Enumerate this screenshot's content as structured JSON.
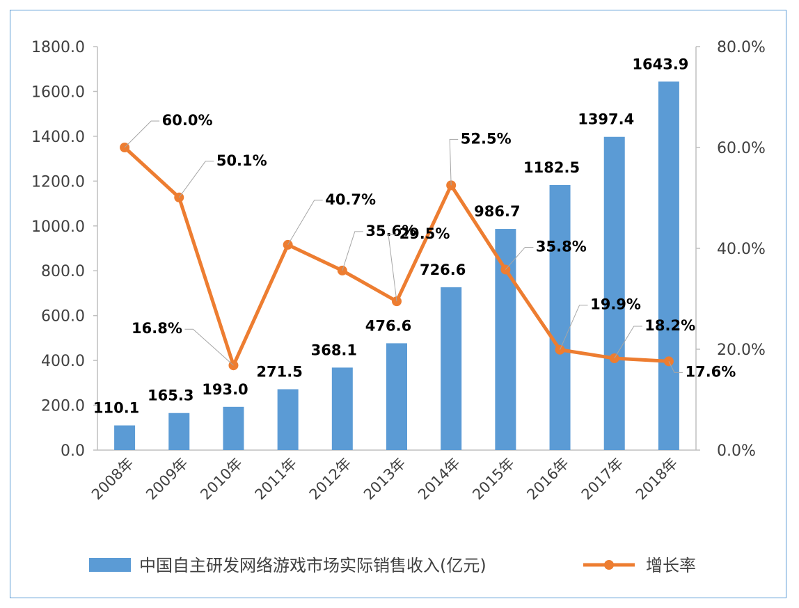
{
  "chart_data": {
    "type": "bar+line",
    "categories": [
      "2008年",
      "2009年",
      "2010年",
      "2011年",
      "2012年",
      "2013年",
      "2014年",
      "2015年",
      "2016年",
      "2017年",
      "2018年"
    ],
    "series": [
      {
        "name": "中国自主研发网络游戏市场实际销售收入(亿元)",
        "type": "bar",
        "axis": "left",
        "color": "#5b9bd5",
        "values": [
          110.1,
          165.3,
          193.0,
          271.5,
          368.1,
          476.6,
          726.6,
          986.7,
          1182.5,
          1397.4,
          1643.9
        ],
        "labels": [
          "110.1",
          "165.3",
          "193.0",
          "271.5",
          "368.1",
          "476.6",
          "726.6",
          "986.7",
          "1182.5",
          "1397.4",
          "1643.9"
        ]
      },
      {
        "name": "增长率",
        "type": "line",
        "axis": "right",
        "color": "#ed7d31",
        "values": [
          60.0,
          50.1,
          16.8,
          40.7,
          35.6,
          29.5,
          52.5,
          35.8,
          19.9,
          18.2,
          17.6
        ],
        "labels": [
          "60.0%",
          "50.1%",
          "16.8%",
          "40.7%",
          "35.6%",
          "29.5%",
          "52.5%",
          "35.8%",
          "19.9%",
          "18.2%",
          "17.6%"
        ]
      }
    ],
    "y_left": {
      "min": 0,
      "max": 1800,
      "step": 200,
      "tick_labels": [
        "0.0",
        "200.0",
        "400.0",
        "600.0",
        "800.0",
        "1000.0",
        "1200.0",
        "1400.0",
        "1600.0",
        "1800.0"
      ]
    },
    "y_right": {
      "min": 0,
      "max": 80,
      "step": 20,
      "tick_labels": [
        "0.0%",
        "20.0%",
        "40.0%",
        "60.0%",
        "80.0%"
      ]
    },
    "legend": {
      "position": "bottom"
    },
    "grid": false
  }
}
